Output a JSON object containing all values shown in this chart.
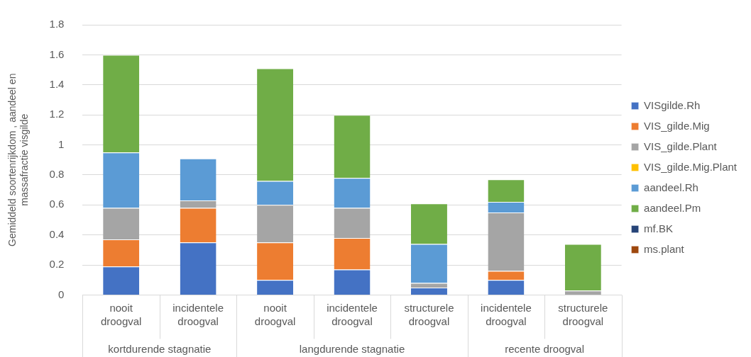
{
  "chart_data": {
    "type": "bar",
    "stacked": true,
    "ylabel": "Gemiddeld soortenrijkdom , aandeel en massafractie visgilde",
    "categories": [
      "nooit droogval",
      "incidentele droogval",
      "nooit droogval",
      "incidentele droogval",
      "structurele droogval",
      "incidentele droogval",
      "structurele droogval"
    ],
    "annotations": [
      "kortdurende stagnatie",
      "langdurende stagnatie",
      "recente droogval"
    ],
    "ylim": [
      0,
      1.8
    ],
    "yticks": [
      0,
      0.2,
      0.4,
      0.6,
      0.8,
      1,
      1.2,
      1.4,
      1.6,
      1.8
    ],
    "grid": "y",
    "legend": "right",
    "series": [
      {
        "name": "VISgilde.Rh",
        "color": "#4472c4",
        "values": [
          0.19,
          0.35,
          0.1,
          0.17,
          0.05,
          0.1,
          0
        ]
      },
      {
        "name": "VIS_gilde.Mig",
        "color": "#ed7d31",
        "values": [
          0.18,
          0.23,
          0.25,
          0.21,
          0,
          0.06,
          0
        ]
      },
      {
        "name": "VIS_gilde.Plant",
        "color": "#a5a5a5",
        "values": [
          0.21,
          0.05,
          0.25,
          0.2,
          0.03,
          0.39,
          0.03
        ]
      },
      {
        "name": "VIS_gilde.Mig.Plant",
        "color": "#ffc000",
        "values": [
          0,
          0,
          0,
          0,
          0,
          0,
          0
        ]
      },
      {
        "name": "aandeel.Rh",
        "color": "#5b9bd5",
        "values": [
          0.37,
          0.28,
          0.16,
          0.2,
          0.26,
          0.07,
          0
        ]
      },
      {
        "name": "aandeel.Pm",
        "color": "#70ad47",
        "values": [
          0.65,
          0,
          0.75,
          0.42,
          0.27,
          0.15,
          0.31
        ]
      },
      {
        "name": "mf.BK",
        "color": "#264478",
        "values": [
          0,
          0,
          0,
          0,
          0,
          0,
          0
        ]
      },
      {
        "name": "ms.plant",
        "color": "#9e480e",
        "values": [
          0,
          0,
          0,
          0,
          0,
          0,
          0
        ]
      }
    ]
  }
}
